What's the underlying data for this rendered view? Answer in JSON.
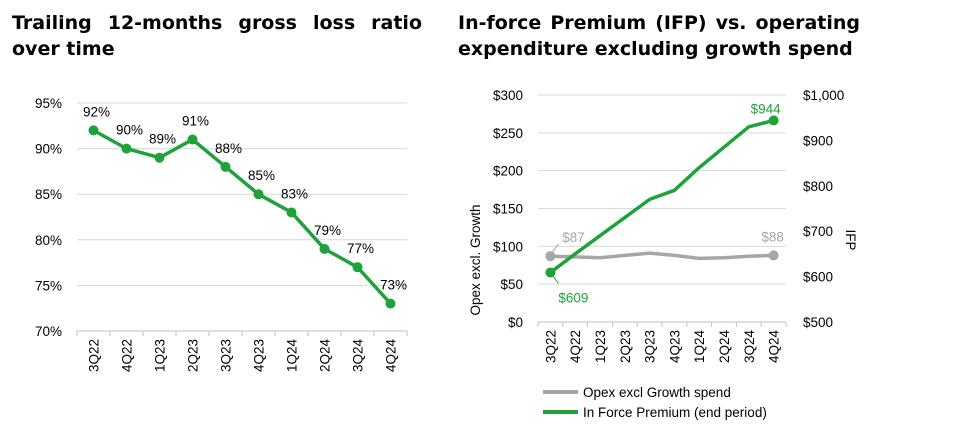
{
  "chart_data": [
    {
      "type": "line",
      "title": "Trailing 12-months gross loss ratio over time",
      "categories": [
        "3Q22",
        "4Q22",
        "1Q23",
        "2Q23",
        "3Q23",
        "4Q23",
        "1Q24",
        "2Q24",
        "3Q24",
        "4Q24"
      ],
      "series": [
        {
          "values": [
            92,
            90,
            89,
            91,
            88,
            85,
            83,
            79,
            77,
            73
          ],
          "labels": [
            "92%",
            "90%",
            "89%",
            "91%",
            "88%",
            "85%",
            "83%",
            "79%",
            "77%",
            "73%"
          ],
          "color": "#1fa23a"
        }
      ],
      "ylim": [
        70,
        95
      ],
      "yticks": [
        "70%",
        "75%",
        "80%",
        "85%",
        "90%",
        "95%"
      ],
      "grid": true,
      "legend": "none"
    },
    {
      "type": "line",
      "title": "In-force Premium (IFP) vs. operating expenditure excluding growth spend",
      "categories": [
        "3Q22",
        "4Q22",
        "1Q23",
        "2Q23",
        "3Q23",
        "4Q23",
        "1Q24",
        "2Q24",
        "3Q24",
        "4Q24"
      ],
      "ylabel": "Opex excl. Growth",
      "y2label": "IFP",
      "ylim": [
        0,
        300
      ],
      "y2lim": [
        500,
        1000
      ],
      "yticks": [
        "$0",
        "$50",
        "$100",
        "$150",
        "$200",
        "$250",
        "$300"
      ],
      "y2ticks": [
        "$500",
        "$600",
        "$700",
        "$800",
        "$900",
        "$1,000"
      ],
      "series": [
        {
          "name": "Opex excl Growth spend",
          "axis": "left",
          "color": "#a6a6a6",
          "values": [
            87,
            86,
            85,
            88,
            91,
            88,
            84,
            85,
            87,
            88
          ],
          "first_label": "$87",
          "last_label": "$88"
        },
        {
          "name": "In Force Premium (end period)",
          "axis": "right",
          "color": "#1fa23a",
          "values": [
            609,
            650,
            690,
            730,
            770,
            790,
            840,
            885,
            930,
            944
          ],
          "first_label": "$609",
          "last_label": "$944"
        }
      ],
      "grid": true,
      "legend": "bottom"
    }
  ]
}
